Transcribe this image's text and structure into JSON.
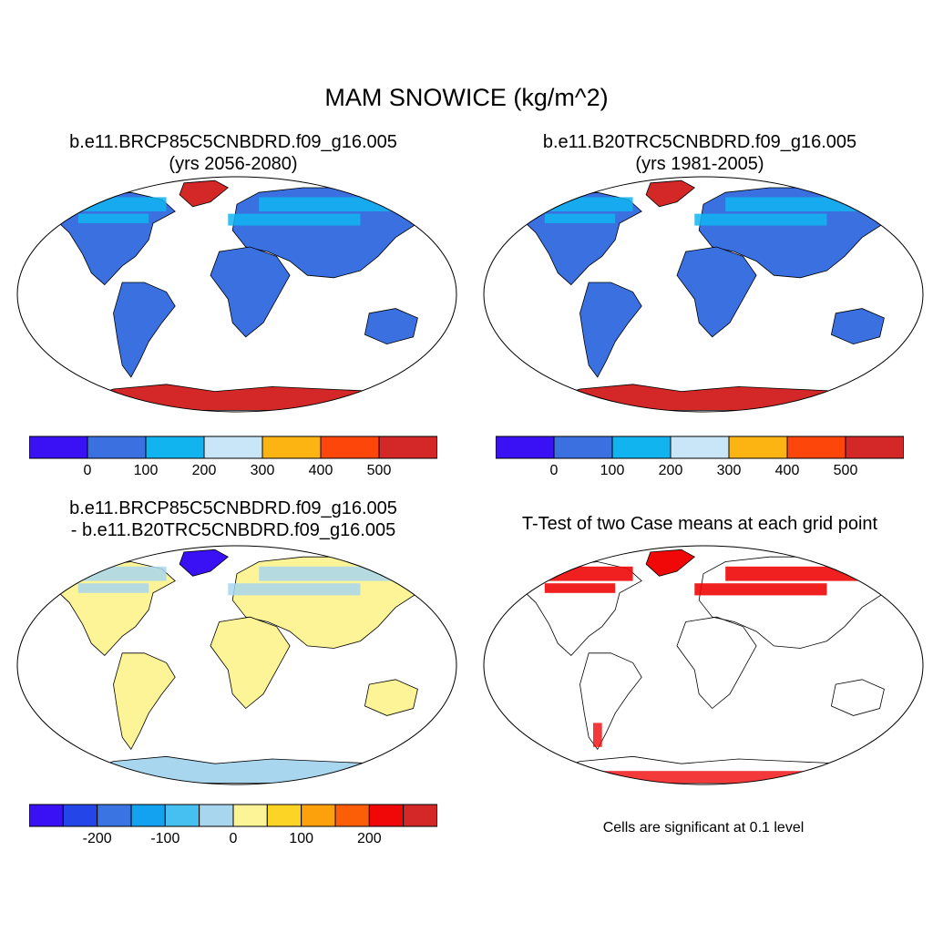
{
  "title": "MAM SNOWICE (kg/m^2)",
  "panels": [
    {
      "title_line1": "b.e11.BRCP85C5CNBDRD.f09_g16.005",
      "title_line2": "(yrs 2056-2080)"
    },
    {
      "title_line1": "b.e11.B20TRC5CNBDRD.f09_g16.005",
      "title_line2": "(yrs 1981-2005)"
    },
    {
      "title_line1": "b.e11.BRCP85C5CNBDRD.f09_g16.005",
      "title_line2": "- b.e11.B20TRC5CNBDRD.f09_g16.005"
    },
    {
      "title_line1": "T-Test of two Case means at each grid point",
      "title_line2": ""
    }
  ],
  "colorbar_abs": {
    "colors": [
      "#3a10f5",
      "#3a70e0",
      "#12b4f0",
      "#c8e6f8",
      "#fcb412",
      "#fc460a",
      "#d42828"
    ],
    "labels": [
      "0",
      "100",
      "200",
      "300",
      "400",
      "500"
    ]
  },
  "colorbar_diff": {
    "colors": [
      "#3a10f5",
      "#2446e8",
      "#3a74e2",
      "#12a2f0",
      "#46c0f0",
      "#a8d6ee",
      "#fcf496",
      "#fcd426",
      "#fca00c",
      "#fc5e08",
      "#f00808",
      "#d42828"
    ],
    "labels": [
      "-200",
      "-100",
      "0",
      "100",
      "200"
    ]
  },
  "significance_note": "Cells are significant at 0.1 level",
  "map_colors": {
    "abs_land": "#3a70e0",
    "abs_polar": "#d42828",
    "abs_north": "#12b4f0",
    "diff_land": "#fcf496",
    "diff_north": "#a8d6ee",
    "diff_polar": "#a8d6ee",
    "ttest_sig": "#f00808"
  }
}
